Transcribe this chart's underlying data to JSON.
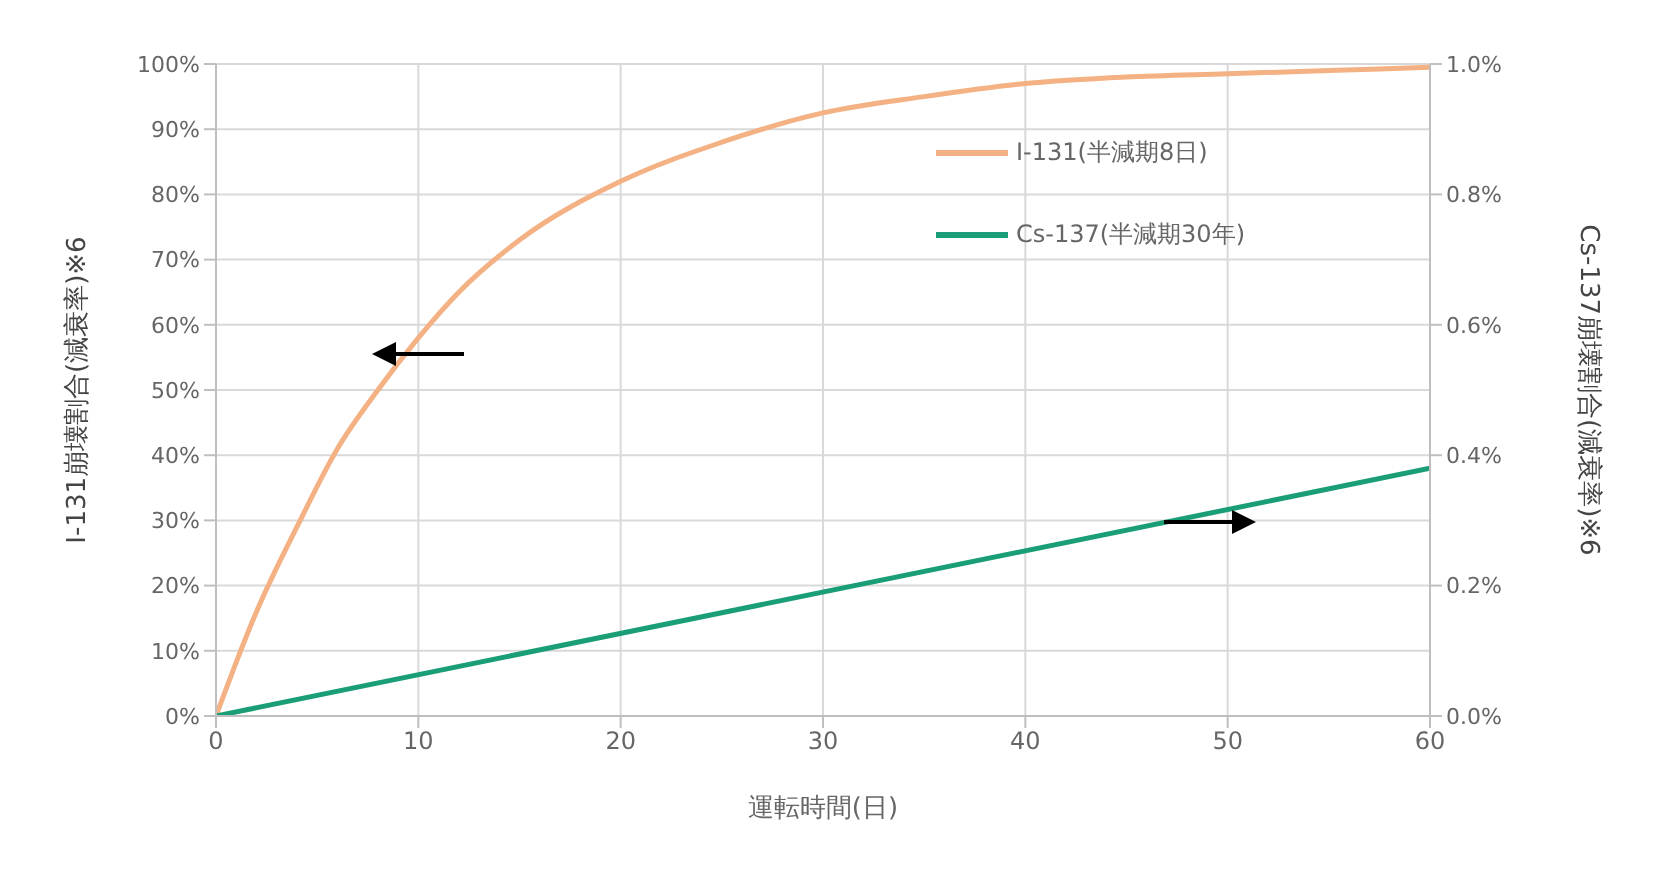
{
  "chart_data": {
    "type": "line",
    "xlabel": "運転時間(日)",
    "ylabel": "I-131崩壊割合(減衰率)※6",
    "y2label": "Cs-137崩壊割合(減衰率)※6",
    "x": [
      0,
      2,
      4,
      6,
      8,
      10,
      12,
      15,
      20,
      25,
      30,
      35,
      40,
      45,
      50,
      55,
      60
    ],
    "series": [
      {
        "name": "I-131(半減期8日)",
        "color": "#f4b183",
        "values": [
          0,
          16,
          29,
          41,
          50,
          58,
          65,
          73,
          82,
          88,
          92.5,
          95,
          97,
          98,
          98.5,
          99,
          99.5
        ]
      },
      {
        "name": "Cs-137(半減期30年)",
        "color": "#1a9e77",
        "axis": "y2",
        "x": [
          0,
          60
        ],
        "values": [
          0,
          0.38
        ]
      }
    ],
    "xlim": [
      0,
      60
    ],
    "xticks": [
      0,
      10,
      20,
      30,
      40,
      50,
      60
    ],
    "ylim": [
      0,
      100
    ],
    "yticks": [
      {
        "value": 0,
        "label": "0%"
      },
      {
        "value": 10,
        "label": "10%"
      },
      {
        "value": 20,
        "label": "20%"
      },
      {
        "value": 30,
        "label": "30%"
      },
      {
        "value": 40,
        "label": "40%"
      },
      {
        "value": 50,
        "label": "50%"
      },
      {
        "value": 60,
        "label": "60%"
      },
      {
        "value": 70,
        "label": "70%"
      },
      {
        "value": 80,
        "label": "80%"
      },
      {
        "value": 90,
        "label": "90%"
      },
      {
        "value": 100,
        "label": "100%"
      }
    ],
    "y2lim": [
      0,
      1
    ],
    "y2ticks": [
      {
        "value": 0,
        "label": "0.0%"
      },
      {
        "value": 0.2,
        "label": "0.2%"
      },
      {
        "value": 0.4,
        "label": "0.4%"
      },
      {
        "value": 0.6,
        "label": "0.6%"
      },
      {
        "value": 0.8,
        "label": "0.8%"
      },
      {
        "value": 1,
        "label": "1.0%"
      }
    ],
    "grid": true,
    "legend": "top right",
    "marker": "none",
    "line_style": "solid"
  }
}
